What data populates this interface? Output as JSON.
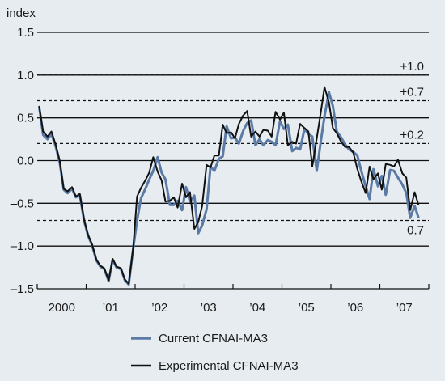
{
  "chart_data": {
    "type": "line",
    "ylabel": "index",
    "ylim": [
      -1.5,
      1.5
    ],
    "y_ticks": [
      {
        "value": 1.5,
        "label": "1.5"
      },
      {
        "value": 1.0,
        "label": "1.0"
      },
      {
        "value": 0.5,
        "label": "0.5"
      },
      {
        "value": 0.0,
        "label": "0.0"
      },
      {
        "value": -0.5,
        "label": "–0.5"
      },
      {
        "value": -1.0,
        "label": "–1.0"
      },
      {
        "value": -1.5,
        "label": "–1.5"
      }
    ],
    "x_ticks": [
      {
        "value": 2000.5,
        "label": "2000"
      },
      {
        "value": 2001.5,
        "label": "’01"
      },
      {
        "value": 2002.5,
        "label": "’02"
      },
      {
        "value": 2003.5,
        "label": "’03"
      },
      {
        "value": 2004.5,
        "label": "’04"
      },
      {
        "value": 2005.5,
        "label": "’05"
      },
      {
        "value": 2006.5,
        "label": "’06"
      },
      {
        "value": 2007.5,
        "label": "’07"
      }
    ],
    "xlim": [
      2000.0,
      2008.0
    ],
    "reference_lines": [
      {
        "value": 1.0,
        "label": "+1.0"
      },
      {
        "value": 0.7,
        "label": "+0.7"
      },
      {
        "value": 0.2,
        "label": "+0.2"
      },
      {
        "value": -0.7,
        "label": "–0.7"
      }
    ],
    "series": [
      {
        "name": "Current CFNAI-MA3",
        "color": "#5b7ba6",
        "points": [
          [
            2000.04,
            0.63
          ],
          [
            2000.12,
            0.3
          ],
          [
            2000.21,
            0.25
          ],
          [
            2000.29,
            0.31
          ],
          [
            2000.37,
            0.18
          ],
          [
            2000.46,
            -0.02
          ],
          [
            2000.54,
            -0.34
          ],
          [
            2000.62,
            -0.38
          ],
          [
            2000.71,
            -0.33
          ],
          [
            2000.79,
            -0.43
          ],
          [
            2000.87,
            -0.4
          ],
          [
            2000.96,
            -0.71
          ],
          [
            2001.04,
            -0.88
          ],
          [
            2001.12,
            -0.99
          ],
          [
            2001.21,
            -1.17
          ],
          [
            2001.29,
            -1.24
          ],
          [
            2001.37,
            -1.27
          ],
          [
            2001.46,
            -1.41
          ],
          [
            2001.54,
            -1.16
          ],
          [
            2001.62,
            -1.25
          ],
          [
            2001.71,
            -1.27
          ],
          [
            2001.79,
            -1.4
          ],
          [
            2001.87,
            -1.45
          ],
          [
            2001.96,
            -1.03
          ],
          [
            2002.04,
            -0.7
          ],
          [
            2002.12,
            -0.44
          ],
          [
            2002.21,
            -0.33
          ],
          [
            2002.29,
            -0.22
          ],
          [
            2002.37,
            -0.12
          ],
          [
            2002.46,
            0.04
          ],
          [
            2002.54,
            -0.14
          ],
          [
            2002.62,
            -0.22
          ],
          [
            2002.71,
            -0.52
          ],
          [
            2002.79,
            -0.52
          ],
          [
            2002.87,
            -0.47
          ],
          [
            2002.96,
            -0.58
          ],
          [
            2003.04,
            -0.31
          ],
          [
            2003.12,
            -0.48
          ],
          [
            2003.21,
            -0.41
          ],
          [
            2003.29,
            -0.85
          ],
          [
            2003.37,
            -0.76
          ],
          [
            2003.46,
            -0.57
          ],
          [
            2003.54,
            -0.07
          ],
          [
            2003.62,
            -0.12
          ],
          [
            2003.71,
            0.02
          ],
          [
            2003.79,
            0.05
          ],
          [
            2003.87,
            0.4
          ],
          [
            2003.96,
            0.26
          ],
          [
            2004.04,
            0.27
          ],
          [
            2004.12,
            0.2
          ],
          [
            2004.21,
            0.35
          ],
          [
            2004.29,
            0.44
          ],
          [
            2004.37,
            0.47
          ],
          [
            2004.46,
            0.18
          ],
          [
            2004.54,
            0.25
          ],
          [
            2004.62,
            0.18
          ],
          [
            2004.71,
            0.24
          ],
          [
            2004.79,
            0.22
          ],
          [
            2004.87,
            0.18
          ],
          [
            2004.96,
            0.46
          ],
          [
            2005.04,
            0.37
          ],
          [
            2005.12,
            0.42
          ],
          [
            2005.21,
            0.11
          ],
          [
            2005.29,
            0.15
          ],
          [
            2005.37,
            0.13
          ],
          [
            2005.46,
            0.37
          ],
          [
            2005.54,
            0.31
          ],
          [
            2005.62,
            0.28
          ],
          [
            2005.71,
            -0.12
          ],
          [
            2005.79,
            0.21
          ],
          [
            2005.87,
            0.52
          ],
          [
            2005.96,
            0.8
          ],
          [
            2006.04,
            0.64
          ],
          [
            2006.12,
            0.34
          ],
          [
            2006.21,
            0.27
          ],
          [
            2006.29,
            0.19
          ],
          [
            2006.37,
            0.13
          ],
          [
            2006.46,
            0.1
          ],
          [
            2006.54,
            0.06
          ],
          [
            2006.62,
            -0.12
          ],
          [
            2006.71,
            -0.3
          ],
          [
            2006.79,
            -0.45
          ],
          [
            2006.87,
            -0.1
          ],
          [
            2006.96,
            -0.3
          ],
          [
            2007.04,
            -0.18
          ],
          [
            2007.12,
            -0.4
          ],
          [
            2007.21,
            -0.11
          ],
          [
            2007.29,
            -0.12
          ],
          [
            2007.37,
            -0.2
          ],
          [
            2007.46,
            -0.28
          ],
          [
            2007.54,
            -0.38
          ],
          [
            2007.62,
            -0.67
          ],
          [
            2007.71,
            -0.53
          ],
          [
            2007.79,
            -0.67
          ]
        ]
      },
      {
        "name": "Experimental CFNAI-MA3",
        "color": "#111111",
        "points": [
          [
            2000.04,
            0.64
          ],
          [
            2000.12,
            0.34
          ],
          [
            2000.21,
            0.28
          ],
          [
            2000.29,
            0.34
          ],
          [
            2000.37,
            0.2
          ],
          [
            2000.46,
            0.0
          ],
          [
            2000.54,
            -0.33
          ],
          [
            2000.62,
            -0.36
          ],
          [
            2000.71,
            -0.31
          ],
          [
            2000.79,
            -0.42
          ],
          [
            2000.87,
            -0.39
          ],
          [
            2000.96,
            -0.7
          ],
          [
            2001.04,
            -0.87
          ],
          [
            2001.12,
            -0.98
          ],
          [
            2001.21,
            -1.16
          ],
          [
            2001.29,
            -1.23
          ],
          [
            2001.37,
            -1.26
          ],
          [
            2001.46,
            -1.4
          ],
          [
            2001.54,
            -1.15
          ],
          [
            2001.62,
            -1.24
          ],
          [
            2001.71,
            -1.26
          ],
          [
            2001.79,
            -1.39
          ],
          [
            2001.87,
            -1.44
          ],
          [
            2001.96,
            -1.02
          ],
          [
            2002.04,
            -0.42
          ],
          [
            2002.12,
            -0.32
          ],
          [
            2002.21,
            -0.23
          ],
          [
            2002.29,
            -0.14
          ],
          [
            2002.37,
            0.04
          ],
          [
            2002.46,
            -0.13
          ],
          [
            2002.54,
            -0.23
          ],
          [
            2002.62,
            -0.48
          ],
          [
            2002.71,
            -0.47
          ],
          [
            2002.79,
            -0.43
          ],
          [
            2002.87,
            -0.55
          ],
          [
            2002.96,
            -0.27
          ],
          [
            2003.04,
            -0.43
          ],
          [
            2003.12,
            -0.37
          ],
          [
            2003.21,
            -0.8
          ],
          [
            2003.29,
            -0.72
          ],
          [
            2003.37,
            -0.53
          ],
          [
            2003.46,
            -0.05
          ],
          [
            2003.54,
            -0.08
          ],
          [
            2003.62,
            0.06
          ],
          [
            2003.71,
            0.06
          ],
          [
            2003.79,
            0.42
          ],
          [
            2003.87,
            0.32
          ],
          [
            2003.96,
            0.33
          ],
          [
            2004.04,
            0.26
          ],
          [
            2004.12,
            0.43
          ],
          [
            2004.21,
            0.53
          ],
          [
            2004.29,
            0.58
          ],
          [
            2004.37,
            0.28
          ],
          [
            2004.46,
            0.34
          ],
          [
            2004.54,
            0.28
          ],
          [
            2004.62,
            0.36
          ],
          [
            2004.71,
            0.35
          ],
          [
            2004.79,
            0.28
          ],
          [
            2004.87,
            0.57
          ],
          [
            2004.96,
            0.48
          ],
          [
            2005.04,
            0.56
          ],
          [
            2005.12,
            0.18
          ],
          [
            2005.21,
            0.22
          ],
          [
            2005.29,
            0.2
          ],
          [
            2005.37,
            0.43
          ],
          [
            2005.46,
            0.38
          ],
          [
            2005.54,
            0.34
          ],
          [
            2005.62,
            -0.07
          ],
          [
            2005.71,
            0.26
          ],
          [
            2005.79,
            0.55
          ],
          [
            2005.87,
            0.86
          ],
          [
            2005.96,
            0.68
          ],
          [
            2006.04,
            0.38
          ],
          [
            2006.12,
            0.32
          ],
          [
            2006.21,
            0.22
          ],
          [
            2006.29,
            0.16
          ],
          [
            2006.37,
            0.16
          ],
          [
            2006.46,
            0.09
          ],
          [
            2006.54,
            -0.1
          ],
          [
            2006.62,
            -0.24
          ],
          [
            2006.71,
            -0.38
          ],
          [
            2006.79,
            -0.07
          ],
          [
            2006.87,
            -0.22
          ],
          [
            2006.96,
            -0.15
          ],
          [
            2007.04,
            -0.34
          ],
          [
            2007.12,
            -0.04
          ],
          [
            2007.21,
            -0.05
          ],
          [
            2007.29,
            -0.07
          ],
          [
            2007.37,
            0.01
          ],
          [
            2007.46,
            -0.15
          ],
          [
            2007.54,
            -0.2
          ],
          [
            2007.62,
            -0.58
          ],
          [
            2007.71,
            -0.37
          ],
          [
            2007.79,
            -0.52
          ]
        ]
      }
    ],
    "legend": "bottom-center"
  }
}
